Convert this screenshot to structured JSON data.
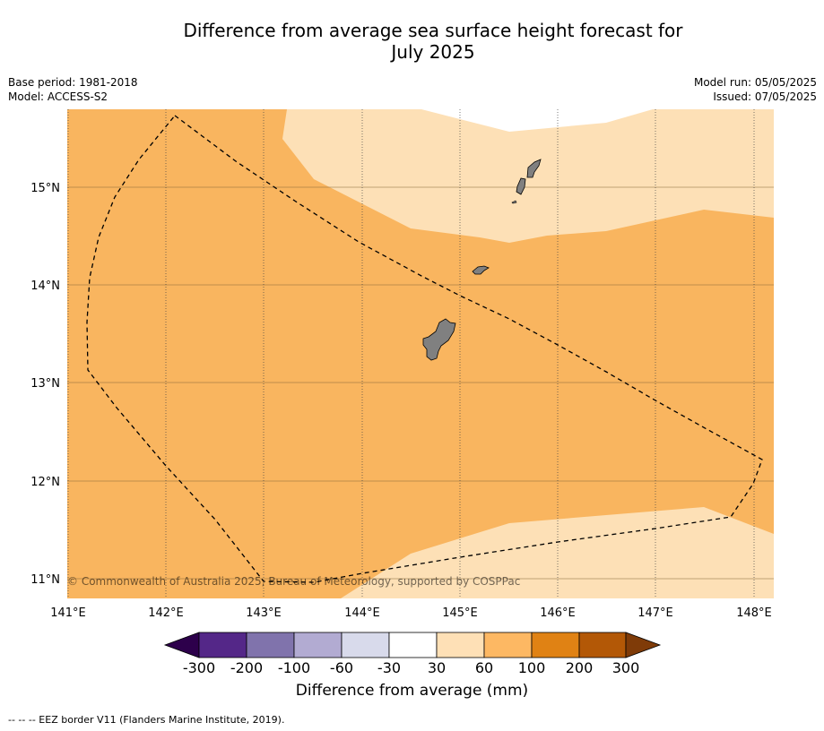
{
  "header": {
    "title_line1": "Difference from average sea surface height forecast for",
    "title_line2": "July 2025",
    "base_period": "Base period: 1981-2018",
    "model": "Model: ACCESS-S2",
    "model_run": "Model run: 05/05/2025",
    "issued": "Issued: 07/05/2025"
  },
  "map": {
    "lat_labels": [
      "15°N",
      "14°N",
      "13°N",
      "12°N",
      "11°N"
    ],
    "lon_labels": [
      "141°E",
      "142°E",
      "143°E",
      "144°E",
      "145°E",
      "146°E",
      "147°E",
      "148°E"
    ],
    "copyright": "© Commonwealth of Australia 2025, Bureau of Meteorology, supported by COSPPac",
    "colors": {
      "band_60_100": "#f9b55f",
      "band_30_60": "#fde0b6",
      "land": "#808080"
    }
  },
  "colorbar": {
    "tick_labels": [
      "-300",
      "-200",
      "-100",
      "-60",
      "-30",
      "30",
      "60",
      "100",
      "200",
      "300"
    ],
    "colors": [
      "#2d004b",
      "#542788",
      "#8073ac",
      "#b2abd2",
      "#d8daeb",
      "#ffffff",
      "#fee0b6",
      "#fdb863",
      "#e08214",
      "#b35806",
      "#7f3b08"
    ],
    "label": "Difference from average (mm)"
  },
  "footer": {
    "legend": "--  --  -- EEZ border V11 (Flanders Marine Institute, 2019)."
  }
}
